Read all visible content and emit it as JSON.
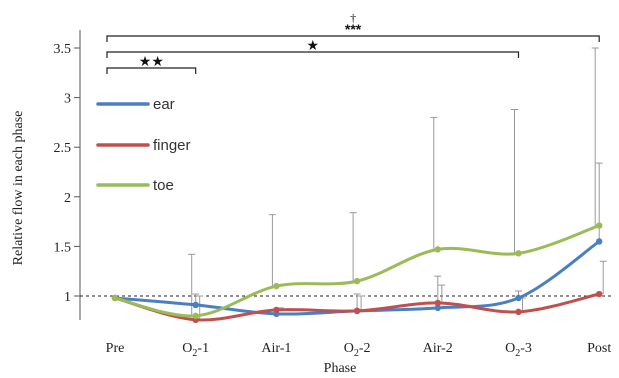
{
  "chart_data": {
    "type": "line",
    "title": "",
    "xlabel": "Phase",
    "ylabel": "Relative flow in each phase",
    "ylim": [
      0.5,
      3.6
    ],
    "yticks": [
      "1",
      "1.5",
      "2",
      "2.5",
      "3",
      "3.5"
    ],
    "ytick_values": [
      1,
      1.5,
      2,
      2.5,
      3,
      3.5
    ],
    "categories": [
      {
        "main": "Pre",
        "sub": "",
        "suffix": ""
      },
      {
        "main": "O",
        "sub": "2",
        "suffix": "-1"
      },
      {
        "main": "Air-1",
        "sub": "",
        "suffix": ""
      },
      {
        "main": "O",
        "sub": "2",
        "suffix": "-2"
      },
      {
        "main": "Air-2",
        "sub": "",
        "suffix": ""
      },
      {
        "main": "O",
        "sub": "2",
        "suffix": "-3"
      },
      {
        "main": "Post",
        "sub": "",
        "suffix": ""
      }
    ],
    "reference_line": 1,
    "legend_position": "upper-left",
    "series": [
      {
        "name": "ear",
        "color": "#4a7fc1",
        "values": [
          0.98,
          0.91,
          0.82,
          0.85,
          0.88,
          0.98,
          1.55
        ],
        "error_upper": [
          0.98,
          1.02,
          0.86,
          1.02,
          1.2,
          1.05,
          2.34
        ]
      },
      {
        "name": "finger",
        "color": "#c0504d",
        "values": [
          0.98,
          0.76,
          0.86,
          0.85,
          0.93,
          0.84,
          1.02
        ],
        "error_upper": [
          0.98,
          1.0,
          0.88,
          1.0,
          1.11,
          0.98,
          1.35
        ]
      },
      {
        "name": "toe",
        "color": "#9bbb59",
        "values": [
          0.98,
          0.8,
          1.1,
          1.15,
          1.47,
          1.43,
          1.71
        ],
        "error_upper": [
          0.98,
          1.42,
          1.82,
          1.84,
          2.8,
          2.88,
          3.5
        ]
      }
    ],
    "significance": [
      {
        "from": 0,
        "to": 1,
        "label": "★★",
        "dagger": ""
      },
      {
        "from": 0,
        "to": 5,
        "label": "★",
        "dagger": ""
      },
      {
        "from": 0,
        "to": 6,
        "label": "***",
        "dagger": "†"
      }
    ]
  }
}
